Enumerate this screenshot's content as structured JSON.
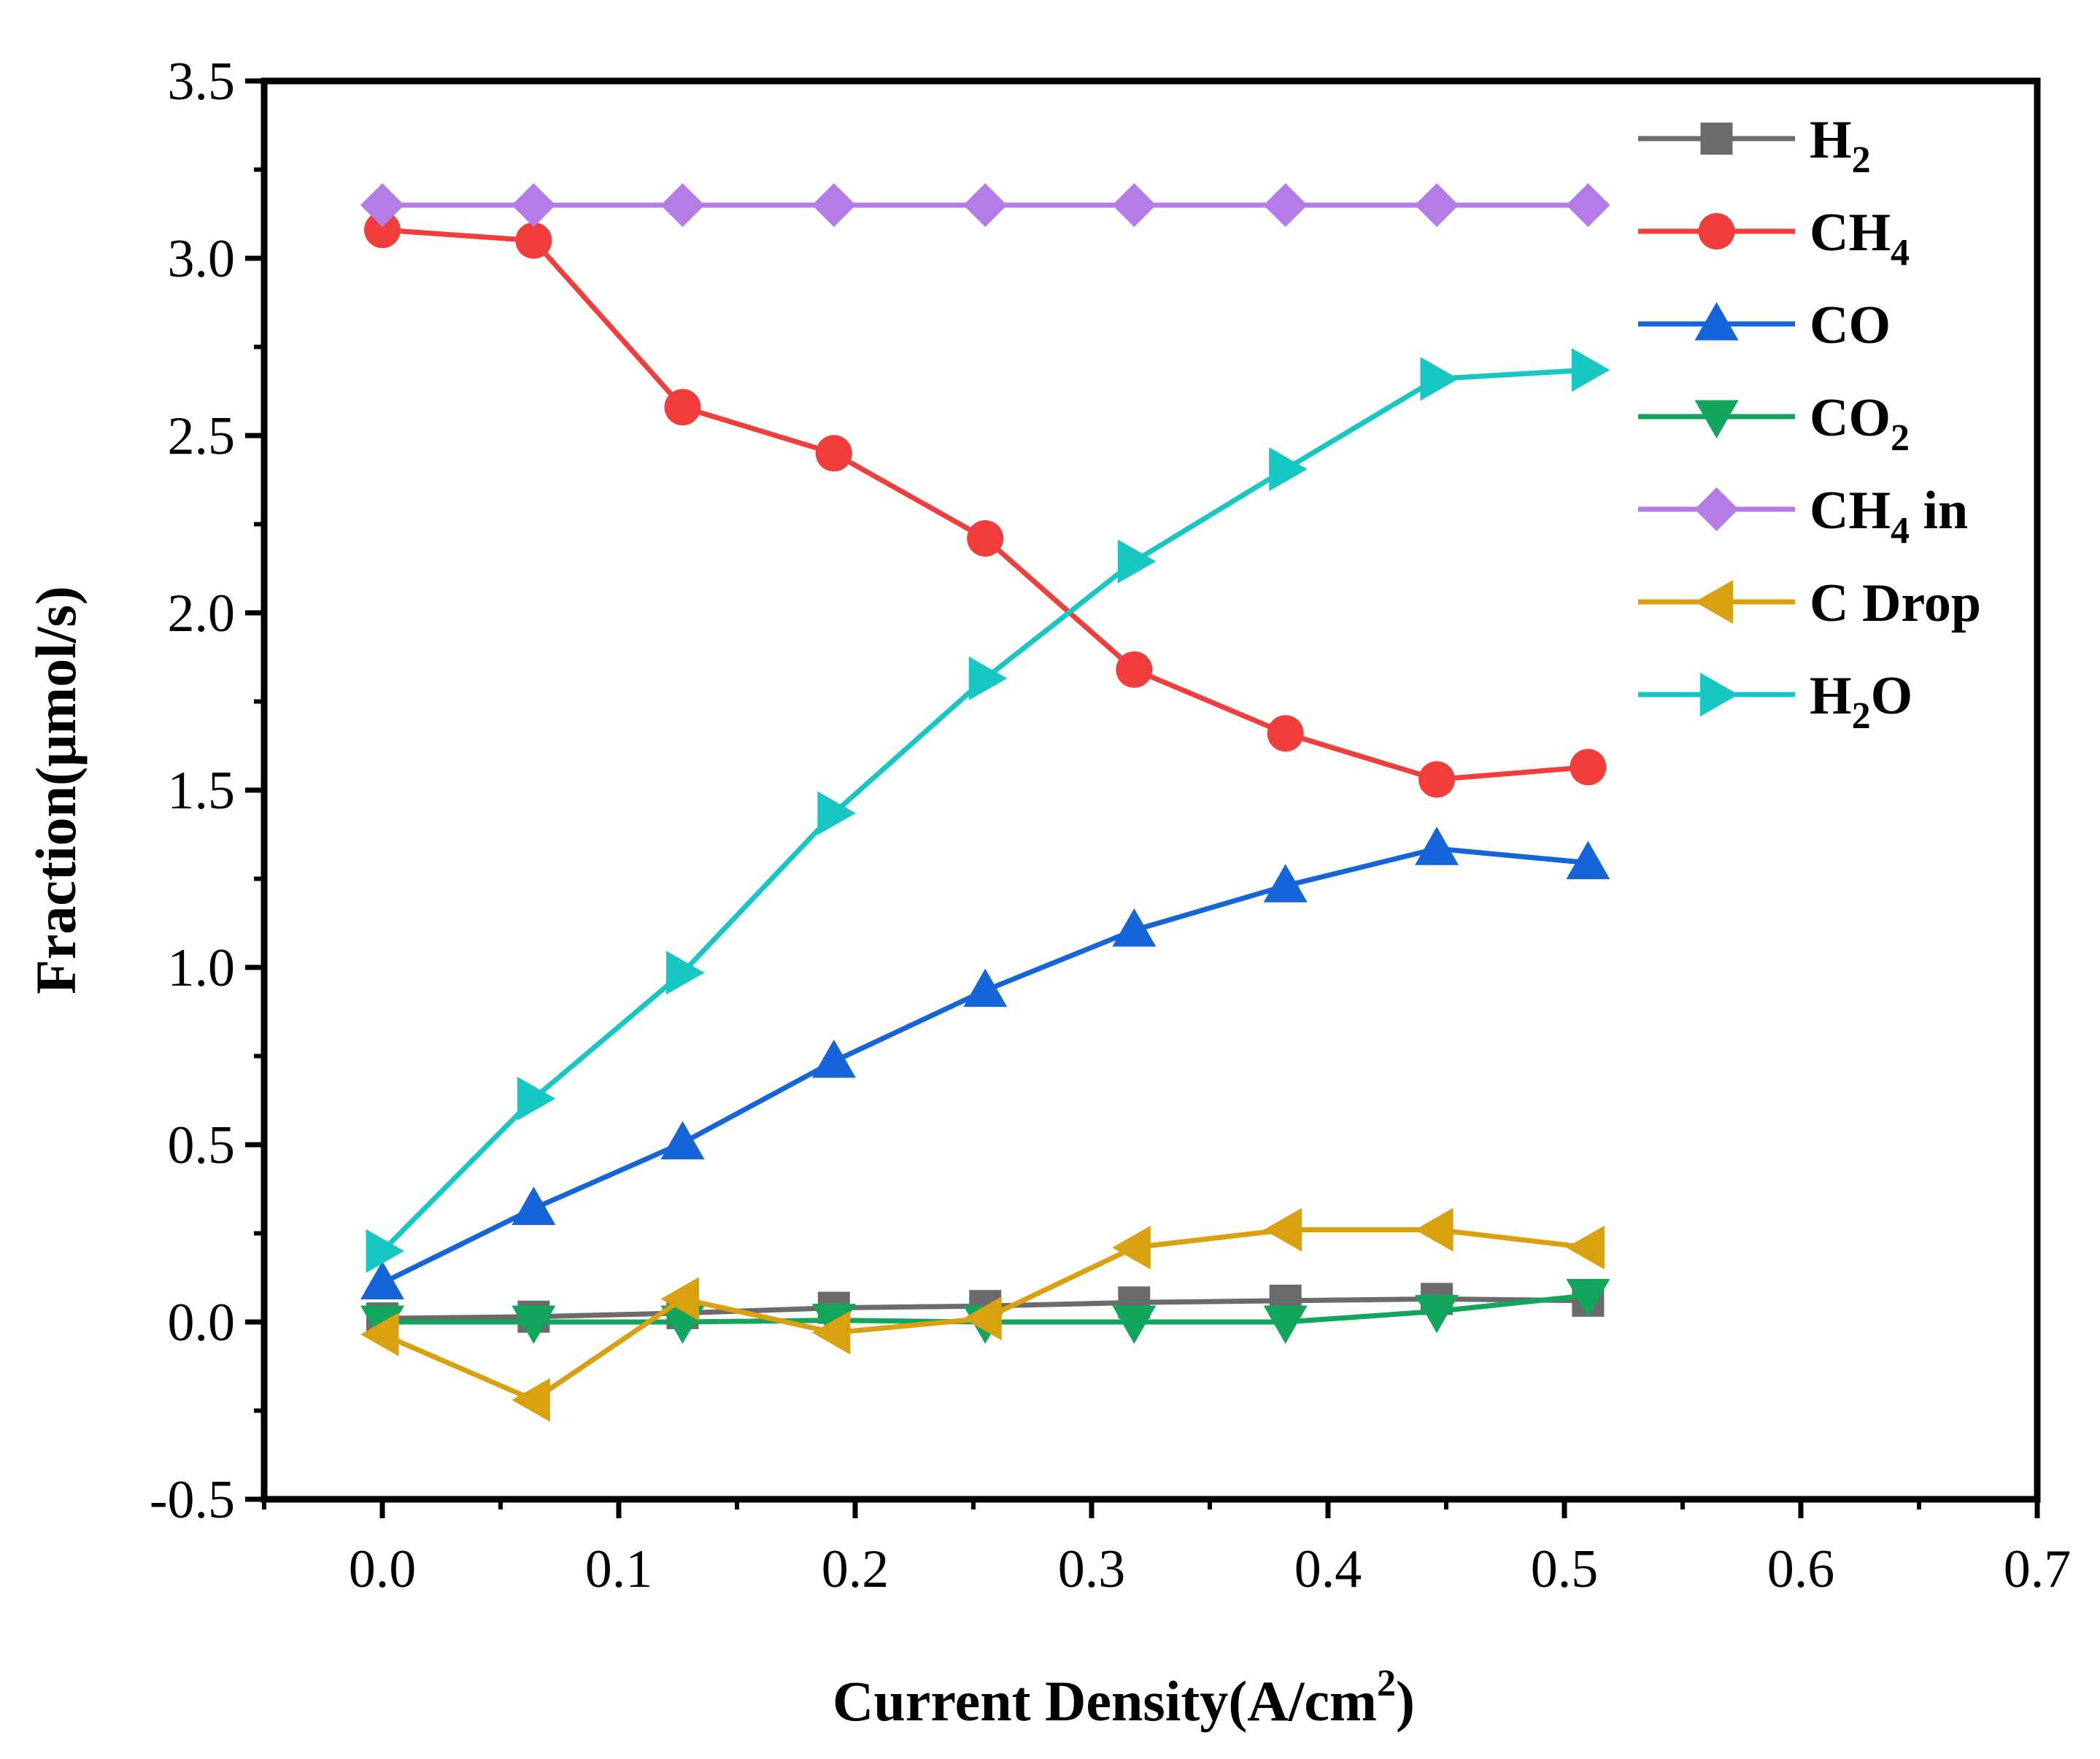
{
  "chart_data": {
    "type": "line",
    "title": "",
    "xlabel": "Current Density(A/cm",
    "xlabel_sup": "2",
    "xlabel_end": ")",
    "ylabel": "Fraction(μmol/s)",
    "xlim": [
      -0.05,
      0.7
    ],
    "ylim": [
      -0.5,
      3.5
    ],
    "x_ticks": [
      0.0,
      0.1,
      0.2,
      0.3,
      0.4,
      0.5,
      0.6,
      0.7
    ],
    "x_tick_labels": [
      "0.0",
      "0.1",
      "0.2",
      "0.3",
      "0.4",
      "0.5",
      "0.6",
      "0.7"
    ],
    "y_ticks": [
      -0.5,
      0.0,
      0.5,
      1.0,
      1.5,
      2.0,
      2.5,
      3.0,
      3.5
    ],
    "y_tick_labels": [
      "-0.5",
      "0.0",
      "0.5",
      "1.0",
      "1.5",
      "2.0",
      "2.5",
      "3.0",
      "3.5"
    ],
    "grid": false,
    "legend_position": "top-right",
    "x": [
      0.0,
      0.064,
      0.127,
      0.191,
      0.255,
      0.318,
      0.382,
      0.446,
      0.51
    ],
    "series": [
      {
        "id": "h2",
        "name": "H",
        "sub": "2",
        "suffix": "",
        "color": "#6b6b6b",
        "marker": "square",
        "values": [
          0.01,
          0.015,
          0.025,
          0.04,
          0.045,
          0.055,
          0.06,
          0.065,
          0.06
        ]
      },
      {
        "id": "ch4",
        "name": "CH",
        "sub": "4",
        "suffix": "",
        "color": "#f23d3d",
        "marker": "circle",
        "values": [
          3.08,
          3.05,
          2.58,
          2.45,
          2.21,
          1.84,
          1.66,
          1.53,
          1.565
        ]
      },
      {
        "id": "co",
        "name": "CO",
        "sub": "",
        "suffix": "",
        "color": "#1565d8",
        "marker": "triangle-up",
        "values": [
          0.11,
          0.32,
          0.505,
          0.735,
          0.935,
          1.105,
          1.23,
          1.335,
          1.295
        ]
      },
      {
        "id": "co2",
        "name": "CO",
        "sub": "2",
        "suffix": "",
        "color": "#12a65c",
        "marker": "triangle-down",
        "values": [
          0.0,
          0.0,
          0.0,
          0.005,
          0.0,
          0.0,
          0.0,
          0.03,
          0.075
        ]
      },
      {
        "id": "ch4in",
        "name": "CH",
        "sub": "4",
        "suffix": " in",
        "color": "#b57be6",
        "marker": "diamond",
        "values": [
          3.15,
          3.15,
          3.15,
          3.15,
          3.15,
          3.15,
          3.15,
          3.15,
          3.15
        ]
      },
      {
        "id": "cdrop",
        "name": "C Drop",
        "sub": "",
        "suffix": "",
        "color": "#d9a00f",
        "marker": "triangle-left",
        "values": [
          -0.035,
          -0.22,
          0.065,
          -0.03,
          0.01,
          0.21,
          0.26,
          0.26,
          0.21
        ]
      },
      {
        "id": "h2o",
        "name": "H",
        "sub": "2",
        "suffix": "O",
        "color": "#17c7c4",
        "marker": "triangle-right",
        "values": [
          0.2,
          0.63,
          0.985,
          1.435,
          1.815,
          2.145,
          2.405,
          2.66,
          2.685
        ]
      }
    ]
  }
}
